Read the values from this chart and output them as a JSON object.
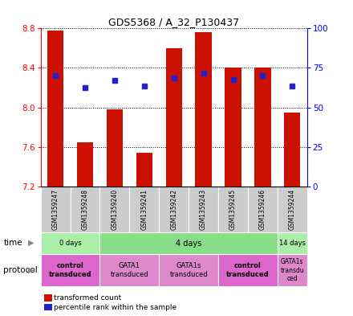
{
  "title": "GDS5368 / A_32_P130437",
  "samples": [
    "GSM1359247",
    "GSM1359248",
    "GSM1359240",
    "GSM1359241",
    "GSM1359242",
    "GSM1359243",
    "GSM1359245",
    "GSM1359246",
    "GSM1359244"
  ],
  "bar_tops": [
    8.78,
    7.65,
    7.98,
    7.54,
    8.6,
    8.76,
    8.4,
    8.4,
    7.95
  ],
  "bar_bottom": 7.2,
  "percentile_values": [
    8.32,
    8.2,
    8.27,
    8.22,
    8.3,
    8.35,
    8.28,
    8.32,
    8.22
  ],
  "ylim": [
    7.2,
    8.8
  ],
  "yticks_left": [
    7.2,
    7.6,
    8.0,
    8.4,
    8.8
  ],
  "yticks_right": [
    0,
    25,
    50,
    75,
    100
  ],
  "bar_color": "#cc1100",
  "dot_color": "#2222cc",
  "time_groups": [
    {
      "label": "0 days",
      "start": 0,
      "end": 2,
      "color": "#aaeea8"
    },
    {
      "label": "4 days",
      "start": 2,
      "end": 8,
      "color": "#88dd88"
    },
    {
      "label": "14 days",
      "start": 8,
      "end": 9,
      "color": "#aaeea8"
    }
  ],
  "protocol_groups": [
    {
      "label": "control\ntransduced",
      "start": 0,
      "end": 2,
      "color": "#dd66cc",
      "bold": true
    },
    {
      "label": "GATA1\ntransduced",
      "start": 2,
      "end": 4,
      "color": "#dd88cc",
      "bold": false
    },
    {
      "label": "GATA1s\ntransduced",
      "start": 4,
      "end": 6,
      "color": "#dd88cc",
      "bold": false
    },
    {
      "label": "control\ntransduced",
      "start": 6,
      "end": 8,
      "color": "#dd66cc",
      "bold": true
    },
    {
      "label": "GATA1s\ntransdu\nced",
      "start": 8,
      "end": 9,
      "color": "#dd88cc",
      "bold": false
    }
  ],
  "legend_red_label": "transformed count",
  "legend_blue_label": "percentile rank within the sample",
  "bg_color": "#ffffff",
  "label_time": "time",
  "label_protocol": "protocol"
}
